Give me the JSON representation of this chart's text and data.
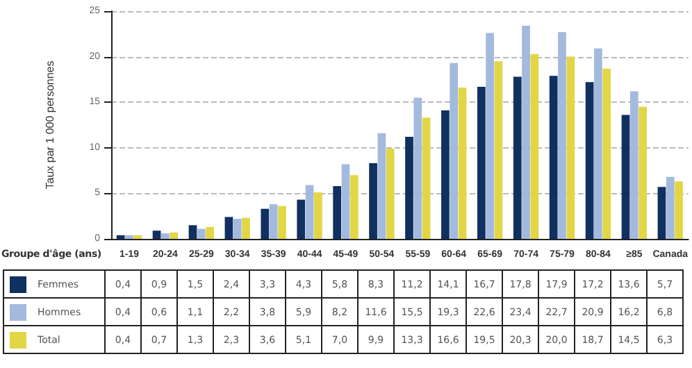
{
  "chart_data": {
    "type": "bar",
    "ylabel": "Taux par 1 000 personnes",
    "xlabel": "Groupe d'âge (ans)",
    "categories": [
      "1-19",
      "20-24",
      "25-29",
      "30-34",
      "35-39",
      "40-44",
      "45-49",
      "50-54",
      "55-59",
      "60-64",
      "65-69",
      "70-74",
      "75-79",
      "80-84",
      "≥85",
      "Canada"
    ],
    "series": [
      {
        "name": "Femmes",
        "color": "#10305f",
        "values": [
          0.4,
          0.9,
          1.5,
          2.4,
          3.3,
          4.3,
          5.8,
          8.3,
          11.2,
          14.1,
          16.7,
          17.8,
          17.9,
          17.2,
          13.6,
          5.7
        ],
        "value_labels": [
          "0,4",
          "0,9",
          "1,5",
          "2,4",
          "3,3",
          "4,3",
          "5,8",
          "8,3",
          "11,2",
          "14,1",
          "16,7",
          "17,8",
          "17,9",
          "17,2",
          "13,6",
          "5,7"
        ]
      },
      {
        "name": "Hommes",
        "color": "#a3bade",
        "values": [
          0.4,
          0.6,
          1.1,
          2.2,
          3.8,
          5.9,
          8.2,
          11.6,
          15.5,
          19.3,
          22.6,
          23.4,
          22.7,
          20.9,
          16.2,
          6.8
        ],
        "value_labels": [
          "0,4",
          "0,6",
          "1,1",
          "2,2",
          "3,8",
          "5,9",
          "8,2",
          "11,6",
          "15,5",
          "19,3",
          "22,6",
          "23,4",
          "22,7",
          "20,9",
          "16,2",
          "6,8"
        ]
      },
      {
        "name": "Total",
        "color": "#e3d646",
        "values": [
          0.4,
          0.7,
          1.3,
          2.3,
          3.6,
          5.1,
          7.0,
          9.9,
          13.3,
          16.6,
          19.5,
          20.3,
          20.0,
          18.7,
          14.5,
          6.3
        ],
        "value_labels": [
          "0,4",
          "0,7",
          "1,3",
          "2,3",
          "3,6",
          "5,1",
          "7,0",
          "9,9",
          "13,3",
          "16,6",
          "19,5",
          "20,3",
          "20,0",
          "18,7",
          "14,5",
          "6,3"
        ]
      }
    ],
    "ylim": [
      0,
      25
    ],
    "yticks": [
      0,
      5,
      10,
      15,
      20,
      25
    ],
    "grid": "y",
    "legend": "bottom"
  }
}
